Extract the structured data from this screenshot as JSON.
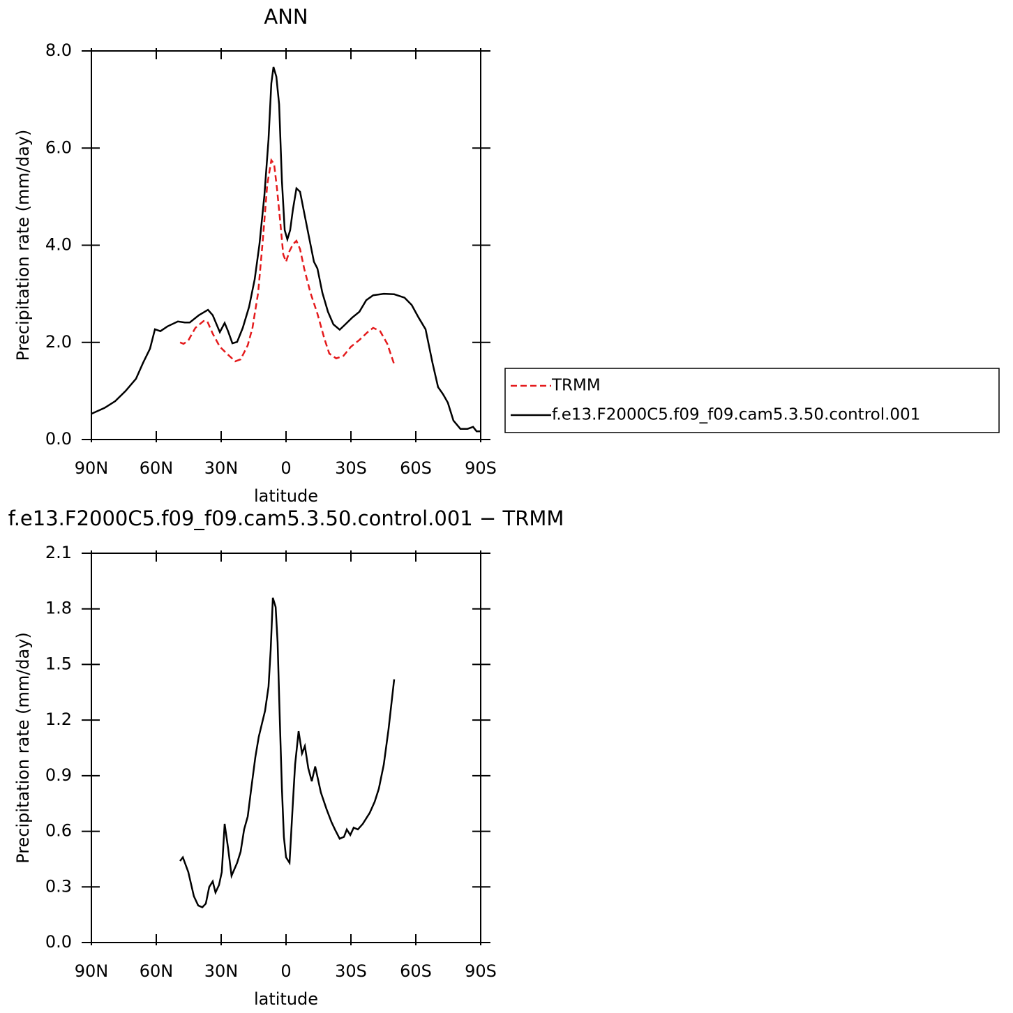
{
  "chart_data": [
    {
      "type": "line",
      "title": "ANN",
      "xlabel": "latitude",
      "ylabel": "Precipitation rate (mm/day)",
      "xlim": [
        90,
        -90
      ],
      "xticks": [
        {
          "value": 90,
          "label": "90N"
        },
        {
          "value": 60,
          "label": "60N"
        },
        {
          "value": 30,
          "label": "30N"
        },
        0,
        {
          "value": -30,
          "label": "30S"
        },
        {
          "value": -60,
          "label": "60S"
        },
        {
          "value": -90,
          "label": "90S"
        }
      ],
      "ylim": [
        0,
        8
      ],
      "yticks": [
        {
          "value": 0,
          "label": "0.0"
        },
        {
          "value": 2,
          "label": "2.0"
        },
        {
          "value": 4,
          "label": "4.0"
        },
        {
          "value": 6,
          "label": "6.0"
        },
        {
          "value": 8,
          "label": "8.0"
        }
      ],
      "legend": "right",
      "series": [
        {
          "name": "TRMM",
          "color": "#e41a1c",
          "linestyle": "dashed",
          "x": [
            49,
            47.4,
            45.2,
            41.9,
            38.1,
            36.5,
            33.9,
            30.6,
            27.4,
            23.5,
            21,
            17.7,
            15.5,
            12.9,
            10.6,
            8.7,
            6.8,
            5.5,
            4.2,
            2.6,
            1.3,
            0,
            -1.6,
            -3.2,
            -4.8,
            -6.5,
            -8.4,
            -11.3,
            -14.5,
            -17.7,
            -20,
            -23.2,
            -26.5,
            -30,
            -33.9,
            -37.7,
            -40.3,
            -43.5,
            -46.8,
            -50
          ],
          "values": [
            2.0,
            1.97,
            2.04,
            2.3,
            2.44,
            2.44,
            2.18,
            1.91,
            1.77,
            1.61,
            1.65,
            1.94,
            2.3,
            3.02,
            4.17,
            5.24,
            5.75,
            5.67,
            5.17,
            4.45,
            3.81,
            3.66,
            3.88,
            4.02,
            4.09,
            3.92,
            3.52,
            3.02,
            2.59,
            2.08,
            1.77,
            1.67,
            1.72,
            1.91,
            2.05,
            2.21,
            2.3,
            2.23,
            1.97,
            1.55
          ]
        },
        {
          "name": "f.e13.F2000C5.f09_f09.cam5.3.50.control.001",
          "color": "#000000",
          "linestyle": "solid",
          "x": [
            90,
            83.9,
            79,
            74.2,
            69.4,
            66.1,
            62.9,
            60.6,
            58.1,
            54.8,
            50,
            46.8,
            44.5,
            40.3,
            36.1,
            33.9,
            30.6,
            28.4,
            26.8,
            24.8,
            22.6,
            20,
            17.1,
            14.5,
            12.3,
            10,
            8.1,
            6.8,
            5.8,
            4.5,
            3.2,
            1.9,
            0.6,
            -0.6,
            -1.9,
            -3.2,
            -4.8,
            -6.5,
            -8.4,
            -10.6,
            -12.9,
            -14.5,
            -16.8,
            -19.4,
            -21.9,
            -24.8,
            -27.4,
            -30.6,
            -33.9,
            -37.1,
            -40.3,
            -45.2,
            -50,
            -54.8,
            -58.1,
            -61.3,
            -64.5,
            -67.7,
            -70.3,
            -72.6,
            -74.8,
            -77.4,
            -80.6,
            -83.9,
            -86.5,
            -88.1,
            -90
          ],
          "values": [
            0.53,
            0.65,
            0.79,
            1.0,
            1.25,
            1.58,
            1.87,
            2.27,
            2.23,
            2.33,
            2.43,
            2.41,
            2.41,
            2.56,
            2.67,
            2.56,
            2.21,
            2.4,
            2.23,
            1.98,
            2.01,
            2.3,
            2.73,
            3.3,
            4.02,
            5.03,
            6.18,
            7.33,
            7.67,
            7.47,
            6.9,
            5.32,
            4.31,
            4.12,
            4.31,
            4.74,
            5.17,
            5.1,
            4.67,
            4.17,
            3.66,
            3.52,
            3.02,
            2.63,
            2.37,
            2.26,
            2.37,
            2.51,
            2.63,
            2.87,
            2.97,
            3.0,
            2.99,
            2.92,
            2.77,
            2.51,
            2.27,
            1.58,
            1.08,
            0.93,
            0.76,
            0.39,
            0.22,
            0.22,
            0.26,
            0.17,
            0.17
          ]
        }
      ]
    },
    {
      "type": "line",
      "title": "f.e13.F2000C5.f09_f09.cam5.3.50.control.001 − TRMM",
      "xlabel": "latitude",
      "ylabel": "Precipitation rate (mm/day)",
      "xlim": [
        90,
        -90
      ],
      "xticks": [
        {
          "value": 90,
          "label": "90N"
        },
        {
          "value": 60,
          "label": "60N"
        },
        {
          "value": 30,
          "label": "30N"
        },
        0,
        {
          "value": -30,
          "label": "30S"
        },
        {
          "value": -60,
          "label": "60S"
        },
        {
          "value": -90,
          "label": "90S"
        }
      ],
      "ylim": [
        0,
        2.1
      ],
      "yticks": [
        {
          "value": 0,
          "label": "0.0"
        },
        0.3,
        0.6,
        0.9,
        1.2,
        1.5,
        1.8,
        2.1
      ],
      "series": [
        {
          "color": "#000000",
          "linestyle": "solid",
          "x": [
            49,
            47.7,
            45.2,
            42.6,
            40.6,
            38.7,
            37.1,
            35.5,
            33.9,
            32.6,
            31,
            29.7,
            28.4,
            26.8,
            25.2,
            22.6,
            21,
            19.4,
            17.7,
            16.1,
            14.2,
            12.6,
            9.7,
            8.1,
            7.1,
            6.1,
            4.8,
            3.9,
            2.9,
            1.9,
            1.0,
            0,
            -1.6,
            -3.2,
            -4.2,
            -5.8,
            -7.4,
            -8.7,
            -10.3,
            -11.9,
            -13.5,
            -16.1,
            -18.7,
            -21,
            -22.6,
            -24.8,
            -26.8,
            -28.1,
            -29.7,
            -31.3,
            -33.2,
            -35.5,
            -38.7,
            -41,
            -42.9,
            -45.2,
            -47.4,
            -50
          ],
          "values": [
            0.44,
            0.46,
            0.38,
            0.25,
            0.2,
            0.19,
            0.21,
            0.3,
            0.33,
            0.27,
            0.31,
            0.38,
            0.64,
            0.51,
            0.36,
            0.43,
            0.49,
            0.61,
            0.68,
            0.83,
            1.0,
            1.11,
            1.25,
            1.38,
            1.58,
            1.86,
            1.81,
            1.62,
            1.21,
            0.83,
            0.57,
            0.46,
            0.43,
            0.76,
            0.96,
            1.14,
            1.02,
            1.06,
            0.94,
            0.87,
            0.95,
            0.81,
            0.72,
            0.65,
            0.61,
            0.56,
            0.57,
            0.61,
            0.58,
            0.62,
            0.61,
            0.64,
            0.7,
            0.76,
            0.83,
            0.96,
            1.15,
            1.42
          ]
        }
      ]
    }
  ]
}
